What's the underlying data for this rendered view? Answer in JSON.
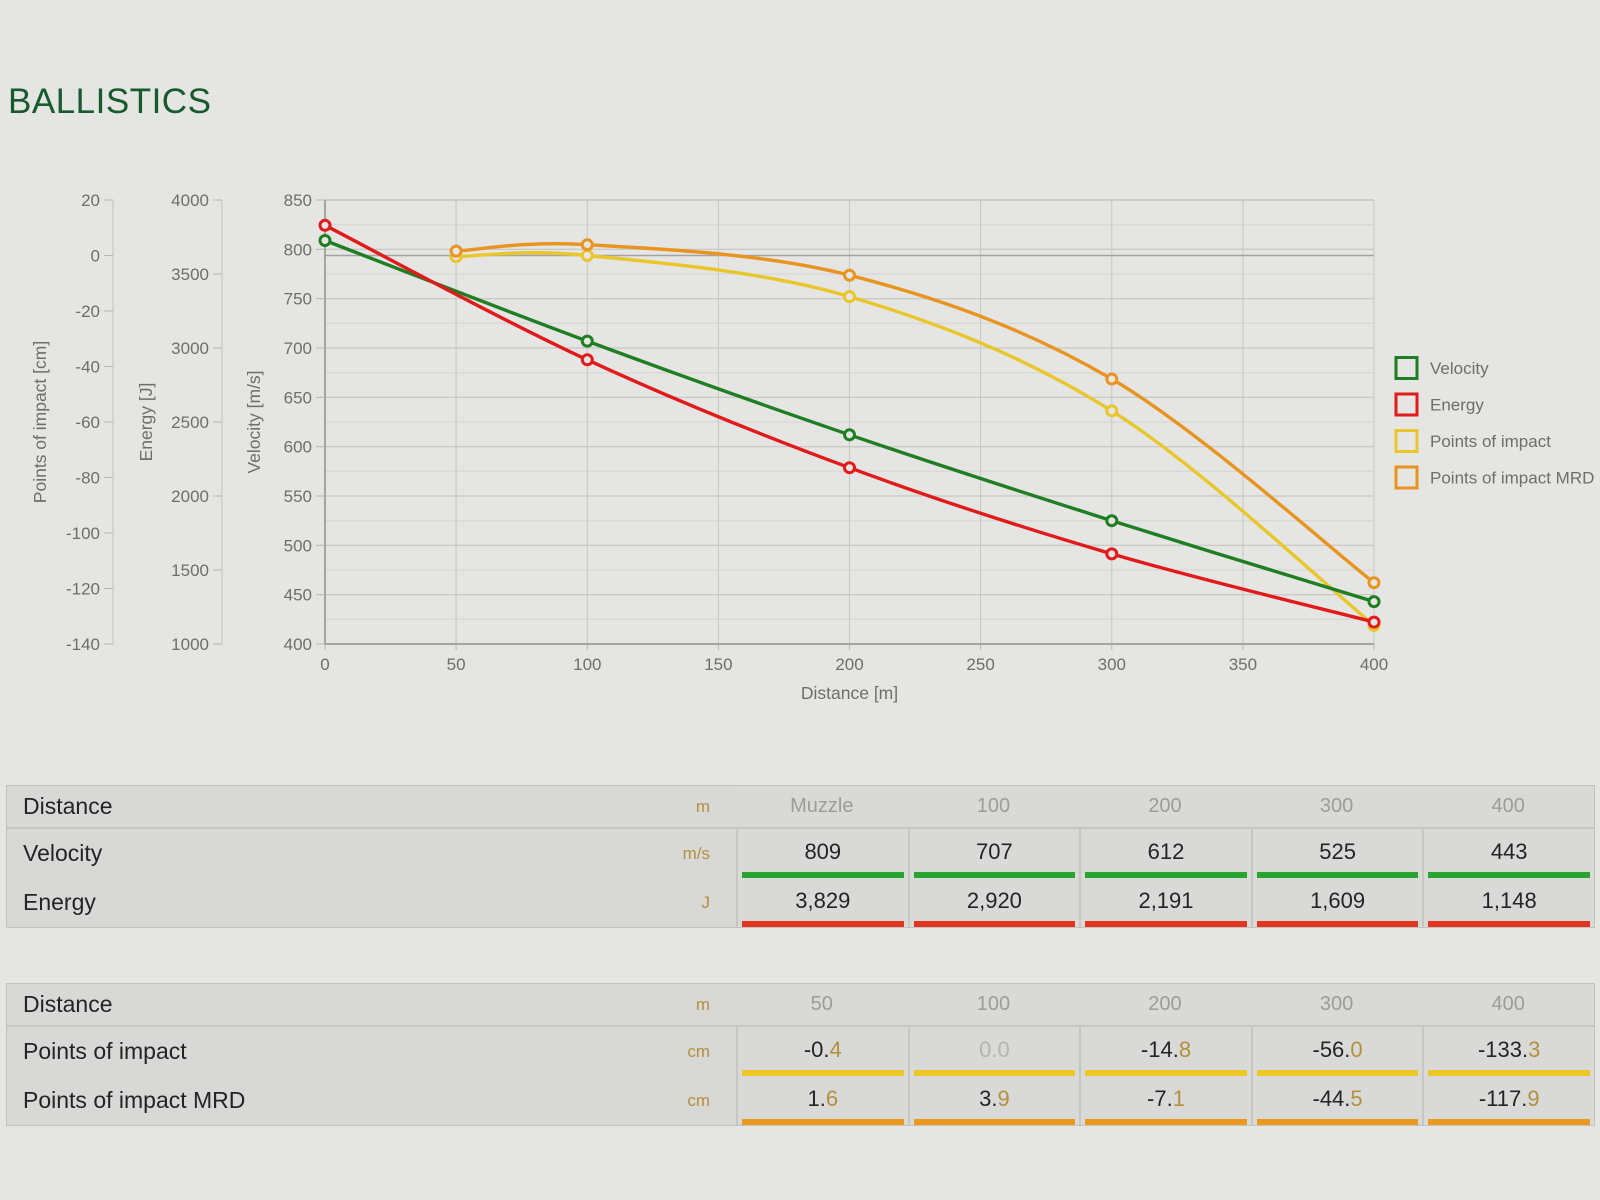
{
  "title": "BALLISTICS",
  "colors": {
    "title_green": "#175a2e",
    "accent_gold": "#b3913c",
    "series_green": "#1f7d22",
    "series_red": "#e11b1b",
    "series_yellow": "#e9c72b",
    "series_orange": "#e8941f",
    "bar_green": "#29a52f",
    "bar_red": "#e23420",
    "bar_yellow": "#ecc827",
    "bar_orange": "#e9991c"
  },
  "chart_data": {
    "type": "line",
    "grid": true,
    "legend_position": "right",
    "x": {
      "label": "Distance [m]",
      "min": 0,
      "max": 400,
      "ticks": [
        0,
        50,
        100,
        150,
        200,
        250,
        300,
        350,
        400
      ]
    },
    "axes": [
      {
        "id": "poi",
        "label": "Points of impact [cm]",
        "min": -140,
        "max": 20,
        "ticks": [
          20,
          0,
          -20,
          -40,
          -60,
          -80,
          -100,
          -120,
          -140
        ],
        "zero_line": true
      },
      {
        "id": "energy",
        "label": "Energy [J]",
        "min": 1000,
        "max": 4000,
        "ticks": [
          4000,
          3500,
          3000,
          2500,
          2000,
          1500,
          1000
        ]
      },
      {
        "id": "velocity",
        "label": "Velocity [m/s]",
        "min": 400,
        "max": 850,
        "ticks": [
          850,
          800,
          750,
          700,
          650,
          600,
          550,
          500,
          450,
          400
        ],
        "minor_step": 25
      }
    ],
    "series": [
      {
        "name": "Points of impact",
        "axis": "poi",
        "color": "#e9c72b",
        "x": [
          50,
          100,
          200,
          300,
          400
        ],
        "y": [
          -0.4,
          0.0,
          -14.8,
          -56.0,
          -133.3
        ]
      },
      {
        "name": "Points of impact MRD",
        "axis": "poi",
        "color": "#e8941f",
        "x": [
          50,
          100,
          200,
          300,
          400
        ],
        "y": [
          1.6,
          3.9,
          -7.1,
          -44.5,
          -117.9
        ]
      },
      {
        "name": "Velocity",
        "axis": "velocity",
        "color": "#1f7d22",
        "x": [
          0,
          100,
          200,
          300,
          400
        ],
        "y": [
          809,
          707,
          612,
          525,
          443
        ]
      },
      {
        "name": "Energy",
        "axis": "energy",
        "color": "#e11b1b",
        "x": [
          0,
          100,
          200,
          300,
          400
        ],
        "y": [
          3829,
          2920,
          2191,
          1609,
          1148
        ]
      }
    ],
    "legend": [
      {
        "label": "Velocity",
        "color": "#1f7d22"
      },
      {
        "label": "Energy",
        "color": "#e11b1b"
      },
      {
        "label": "Points of impact",
        "color": "#e9c72b"
      },
      {
        "label": "Points of impact MRD",
        "color": "#e8941f"
      }
    ]
  },
  "tables": [
    {
      "name": "velocity-energy-table",
      "header": {
        "label": "Distance",
        "unit": "m",
        "columns": [
          "Muzzle",
          "100",
          "200",
          "300",
          "400"
        ]
      },
      "rows": [
        {
          "label": "Velocity",
          "unit": "m/s",
          "bar_color": "#29a52f",
          "values": [
            "809",
            "707",
            "612",
            "525",
            "443"
          ]
        },
        {
          "label": "Energy",
          "unit": "J",
          "bar_color": "#e23420",
          "values": [
            "3,829",
            "2,920",
            "2,191",
            "1,609",
            "1,148"
          ]
        }
      ]
    },
    {
      "name": "points-of-impact-table",
      "header": {
        "label": "Distance",
        "unit": "m",
        "columns": [
          "50",
          "100",
          "200",
          "300",
          "400"
        ]
      },
      "rows": [
        {
          "label": "Points of impact",
          "unit": "cm",
          "bar_color": "#ecc827",
          "decimal_accent": true,
          "values": [
            "-0.4",
            "0.0",
            "-14.8",
            "-56.0",
            "-133.3"
          ]
        },
        {
          "label": "Points of impact MRD",
          "unit": "cm",
          "bar_color": "#e9991c",
          "decimal_accent": true,
          "values": [
            "1.6",
            "3.9",
            "-7.1",
            "-44.5",
            "-117.9"
          ]
        }
      ]
    }
  ]
}
